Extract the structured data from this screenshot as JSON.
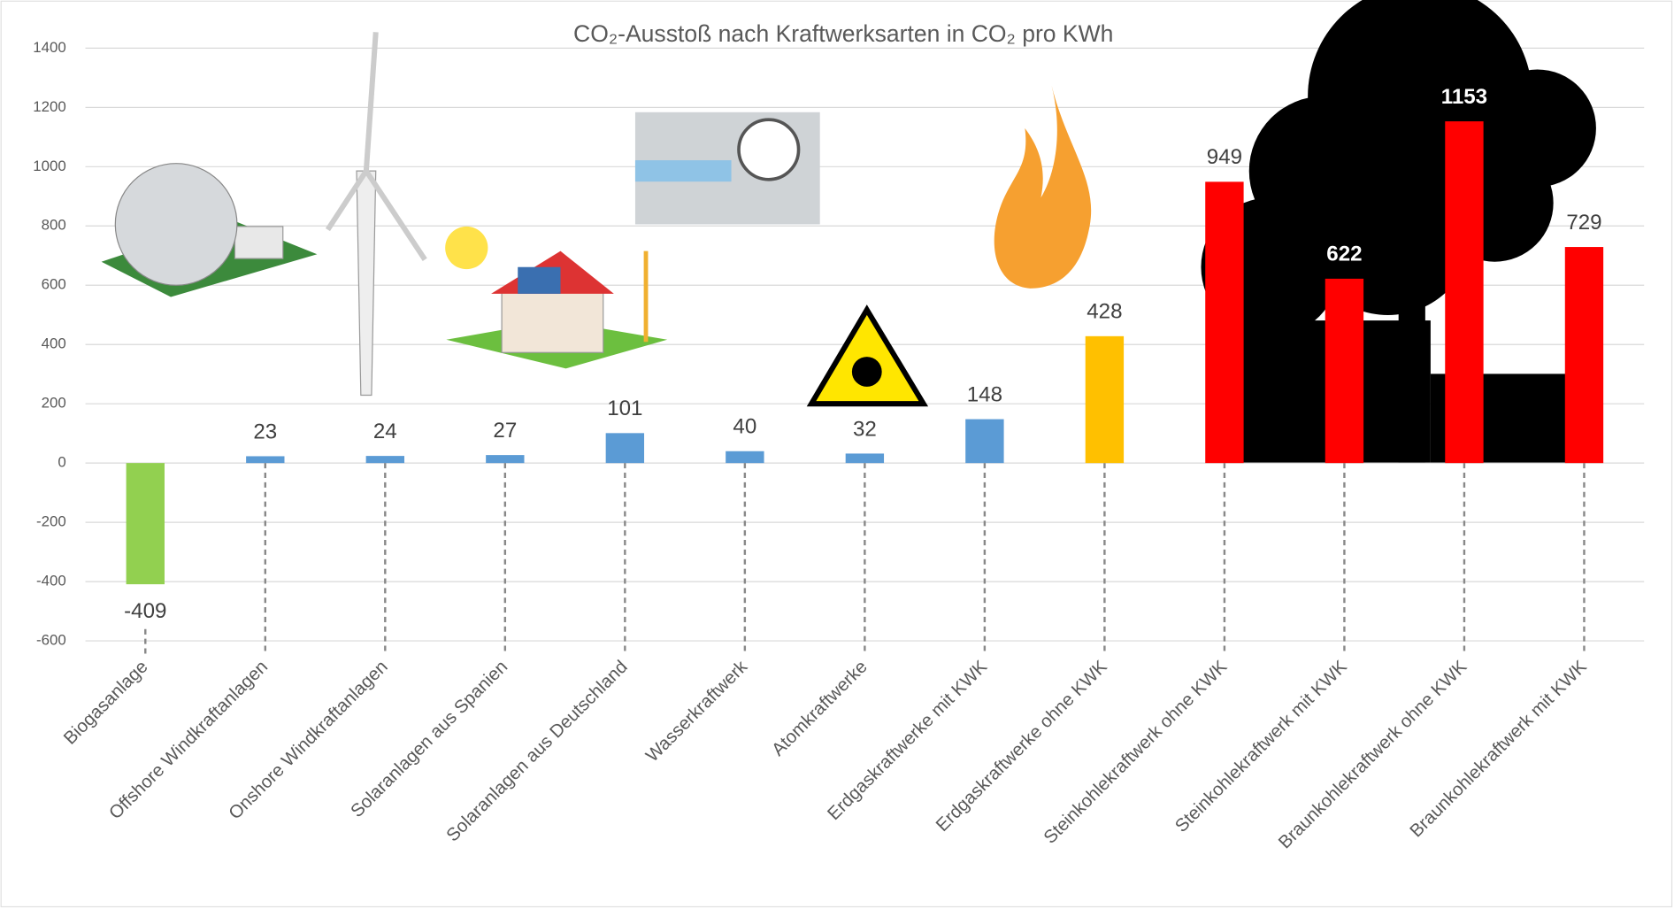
{
  "chart_data": {
    "type": "bar",
    "title": "CO₂-Ausstoß nach Kraftwerksarten in CO₂ pro KWh",
    "categories": [
      "Biogasanlage",
      "Offshore Windkraftanlagen",
      "Onshore Windkraftanlagen",
      "Solaranlagen aus Spanien",
      "Solaranlagen aus Deutschland",
      "Wasserkraftwerk",
      "Atomkraftwerke",
      "Erdgaskraftwerke mit KWK",
      "Erdgaskraftwerke ohne KWK",
      "Steinkohlekraftwerk ohne KWK",
      "Steinkohlekraftwerk mit KWK",
      "Braunkohlekraftwerk ohne KWK",
      "Braunkohlekraftwerk mit KWK"
    ],
    "values": [
      -409,
      23,
      24,
      27,
      101,
      40,
      32,
      148,
      428,
      949,
      622,
      1153,
      729
    ],
    "colors": [
      "#92d050",
      "#5b9bd5",
      "#5b9bd5",
      "#5b9bd5",
      "#5b9bd5",
      "#5b9bd5",
      "#5b9bd5",
      "#5b9bd5",
      "#ffc000",
      "#ff0000",
      "#ff0000",
      "#ff0000",
      "#ff0000"
    ],
    "value_label_colors": [
      "#404040",
      "#404040",
      "#404040",
      "#404040",
      "#404040",
      "#404040",
      "#404040",
      "#404040",
      "#404040",
      "#404040",
      "#ffffff",
      "#ffffff",
      "#404040"
    ],
    "ylim": [
      -600,
      1400
    ],
    "yticks": [
      -600,
      -400,
      -200,
      0,
      200,
      400,
      600,
      800,
      1000,
      1200,
      1400
    ],
    "grid": true
  }
}
